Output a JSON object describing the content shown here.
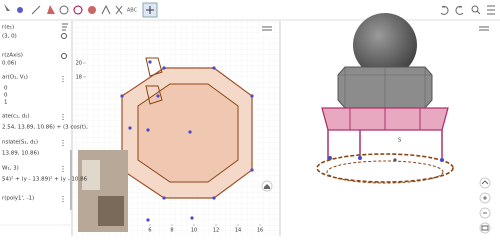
{
  "toolbar": {
    "text_tool": "ABC"
  },
  "algebra": {
    "items": [
      "r(e₁)",
      "(3, 0)",
      "r(zAxis)",
      "0.06)",
      "ar(O₁, V₁)",
      "0",
      "0",
      "1",
      "ate(c₁, d₁)",
      "2.54, 13.89, 10.86) + (3 cos(t),",
      "nslate(S₁, d₁)",
      "13.89, 10.86)",
      "W₁, 3)",
      "54)² + (y - 13.89)² + (y - 10.86",
      "r(poly1', -1)"
    ]
  },
  "graphics": {
    "xticks": [
      6,
      8,
      10,
      12,
      14,
      16
    ],
    "yticks": [
      20,
      18
    ]
  },
  "graphics3d": {
    "labels": [
      "S"
    ]
  }
}
